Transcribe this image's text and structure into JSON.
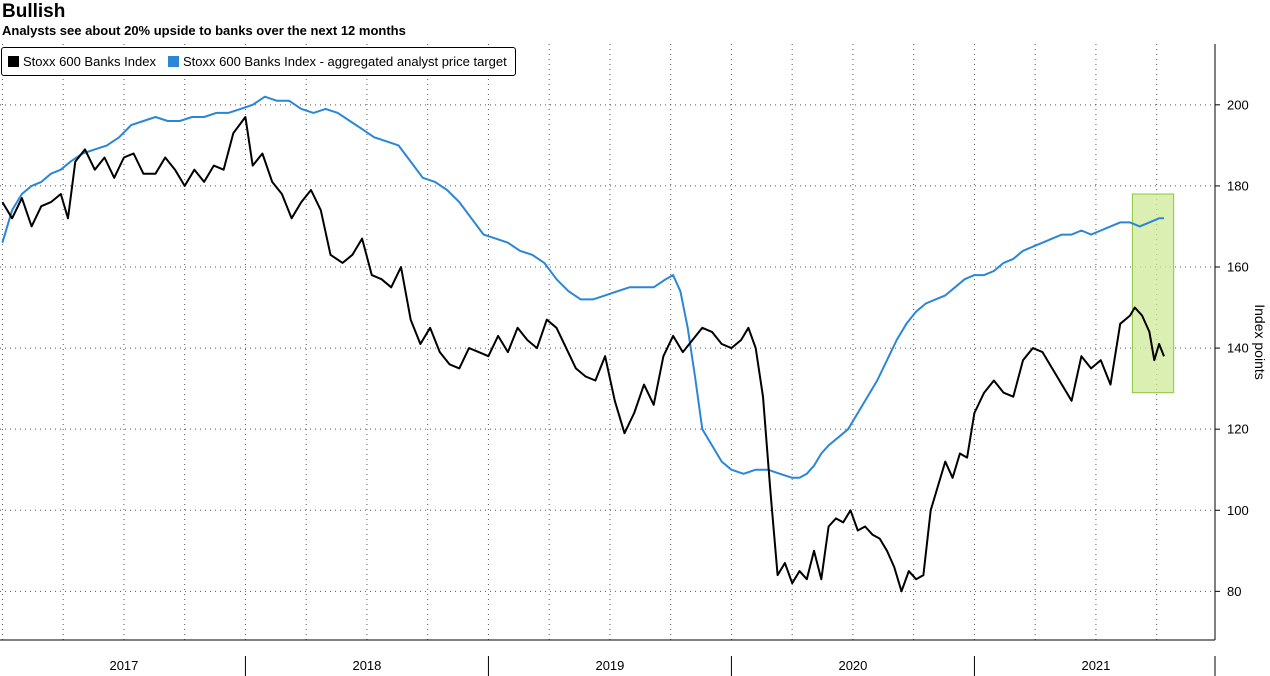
{
  "title": "Bullish",
  "subtitle": "Analysts see about 20% upside to banks over the next 12 months",
  "colors": {
    "index": "#000000",
    "target": "#2b86d6",
    "highlight_fill": "#cfe99a",
    "highlight_stroke": "#8dc63f"
  },
  "chart_data": {
    "type": "line",
    "ylabel": "Index points",
    "ylim": [
      68,
      215
    ],
    "yticks": [
      80,
      100,
      120,
      140,
      160,
      180,
      200
    ],
    "x_range": [
      2016.99,
      2021.99
    ],
    "x_tick_labels": [
      "2017",
      "2018",
      "2019",
      "2020",
      "2021"
    ],
    "legend_position": "top-left",
    "grid": true,
    "highlight_region": {
      "x": [
        2021.65,
        2021.82
      ],
      "y": [
        129,
        178
      ]
    },
    "series": [
      {
        "name": "Stoxx 600 Banks Index",
        "color": "#000000",
        "points": [
          [
            2017.0,
            176
          ],
          [
            2017.04,
            172
          ],
          [
            2017.08,
            177
          ],
          [
            2017.12,
            170
          ],
          [
            2017.16,
            175
          ],
          [
            2017.2,
            176
          ],
          [
            2017.24,
            178
          ],
          [
            2017.27,
            172
          ],
          [
            2017.3,
            186
          ],
          [
            2017.34,
            189
          ],
          [
            2017.38,
            184
          ],
          [
            2017.42,
            187
          ],
          [
            2017.46,
            182
          ],
          [
            2017.5,
            187
          ],
          [
            2017.54,
            188
          ],
          [
            2017.58,
            183
          ],
          [
            2017.63,
            183
          ],
          [
            2017.67,
            187
          ],
          [
            2017.71,
            184
          ],
          [
            2017.75,
            180
          ],
          [
            2017.79,
            184
          ],
          [
            2017.83,
            181
          ],
          [
            2017.87,
            185
          ],
          [
            2017.91,
            184
          ],
          [
            2017.95,
            193
          ],
          [
            2018.0,
            197
          ],
          [
            2018.03,
            185
          ],
          [
            2018.07,
            188
          ],
          [
            2018.11,
            181
          ],
          [
            2018.15,
            178
          ],
          [
            2018.19,
            172
          ],
          [
            2018.23,
            176
          ],
          [
            2018.27,
            179
          ],
          [
            2018.31,
            174
          ],
          [
            2018.35,
            163
          ],
          [
            2018.4,
            161
          ],
          [
            2018.44,
            163
          ],
          [
            2018.48,
            167
          ],
          [
            2018.52,
            158
          ],
          [
            2018.56,
            157
          ],
          [
            2018.6,
            155
          ],
          [
            2018.64,
            160
          ],
          [
            2018.68,
            147
          ],
          [
            2018.72,
            141
          ],
          [
            2018.76,
            145
          ],
          [
            2018.8,
            139
          ],
          [
            2018.84,
            136
          ],
          [
            2018.88,
            135
          ],
          [
            2018.92,
            140
          ],
          [
            2018.96,
            139
          ],
          [
            2019.0,
            138
          ],
          [
            2019.04,
            143
          ],
          [
            2019.08,
            139
          ],
          [
            2019.12,
            145
          ],
          [
            2019.16,
            142
          ],
          [
            2019.2,
            140
          ],
          [
            2019.24,
            147
          ],
          [
            2019.28,
            145
          ],
          [
            2019.32,
            140
          ],
          [
            2019.36,
            135
          ],
          [
            2019.4,
            133
          ],
          [
            2019.44,
            132
          ],
          [
            2019.48,
            138
          ],
          [
            2019.52,
            127
          ],
          [
            2019.56,
            119
          ],
          [
            2019.6,
            124
          ],
          [
            2019.64,
            131
          ],
          [
            2019.68,
            126
          ],
          [
            2019.72,
            138
          ],
          [
            2019.76,
            143
          ],
          [
            2019.8,
            139
          ],
          [
            2019.84,
            142
          ],
          [
            2019.88,
            145
          ],
          [
            2019.92,
            144
          ],
          [
            2019.96,
            141
          ],
          [
            2020.0,
            140
          ],
          [
            2020.04,
            142
          ],
          [
            2020.07,
            145
          ],
          [
            2020.1,
            140
          ],
          [
            2020.13,
            128
          ],
          [
            2020.16,
            105
          ],
          [
            2020.19,
            84
          ],
          [
            2020.22,
            87
          ],
          [
            2020.25,
            82
          ],
          [
            2020.28,
            85
          ],
          [
            2020.31,
            83
          ],
          [
            2020.34,
            90
          ],
          [
            2020.37,
            83
          ],
          [
            2020.4,
            96
          ],
          [
            2020.43,
            98
          ],
          [
            2020.46,
            97
          ],
          [
            2020.49,
            100
          ],
          [
            2020.52,
            95
          ],
          [
            2020.55,
            96
          ],
          [
            2020.58,
            94
          ],
          [
            2020.61,
            93
          ],
          [
            2020.64,
            90
          ],
          [
            2020.67,
            86
          ],
          [
            2020.7,
            80
          ],
          [
            2020.73,
            85
          ],
          [
            2020.76,
            83
          ],
          [
            2020.79,
            84
          ],
          [
            2020.82,
            100
          ],
          [
            2020.85,
            106
          ],
          [
            2020.88,
            112
          ],
          [
            2020.91,
            108
          ],
          [
            2020.94,
            114
          ],
          [
            2020.97,
            113
          ],
          [
            2021.0,
            124
          ],
          [
            2021.04,
            129
          ],
          [
            2021.08,
            132
          ],
          [
            2021.12,
            129
          ],
          [
            2021.16,
            128
          ],
          [
            2021.2,
            137
          ],
          [
            2021.24,
            140
          ],
          [
            2021.28,
            139
          ],
          [
            2021.32,
            135
          ],
          [
            2021.36,
            131
          ],
          [
            2021.4,
            127
          ],
          [
            2021.44,
            138
          ],
          [
            2021.48,
            135
          ],
          [
            2021.52,
            137
          ],
          [
            2021.56,
            131
          ],
          [
            2021.6,
            146
          ],
          [
            2021.64,
            148
          ],
          [
            2021.66,
            150
          ],
          [
            2021.69,
            148
          ],
          [
            2021.72,
            144
          ],
          [
            2021.74,
            137
          ],
          [
            2021.76,
            141
          ],
          [
            2021.78,
            138
          ]
        ]
      },
      {
        "name": "Stoxx 600 Banks Index - aggregated analyst price target",
        "color": "#2b86d6",
        "points": [
          [
            2017.0,
            166
          ],
          [
            2017.04,
            174
          ],
          [
            2017.08,
            178
          ],
          [
            2017.12,
            180
          ],
          [
            2017.16,
            181
          ],
          [
            2017.2,
            183
          ],
          [
            2017.24,
            184
          ],
          [
            2017.28,
            186
          ],
          [
            2017.33,
            188
          ],
          [
            2017.38,
            189
          ],
          [
            2017.43,
            190
          ],
          [
            2017.48,
            192
          ],
          [
            2017.53,
            195
          ],
          [
            2017.58,
            196
          ],
          [
            2017.63,
            197
          ],
          [
            2017.68,
            196
          ],
          [
            2017.73,
            196
          ],
          [
            2017.78,
            197
          ],
          [
            2017.83,
            197
          ],
          [
            2017.88,
            198
          ],
          [
            2017.93,
            198
          ],
          [
            2017.98,
            199
          ],
          [
            2018.03,
            200
          ],
          [
            2018.08,
            202
          ],
          [
            2018.13,
            201
          ],
          [
            2018.18,
            201
          ],
          [
            2018.23,
            199
          ],
          [
            2018.28,
            198
          ],
          [
            2018.33,
            199
          ],
          [
            2018.38,
            198
          ],
          [
            2018.43,
            196
          ],
          [
            2018.48,
            194
          ],
          [
            2018.53,
            192
          ],
          [
            2018.58,
            191
          ],
          [
            2018.63,
            190
          ],
          [
            2018.68,
            186
          ],
          [
            2018.73,
            182
          ],
          [
            2018.78,
            181
          ],
          [
            2018.83,
            179
          ],
          [
            2018.88,
            176
          ],
          [
            2018.93,
            172
          ],
          [
            2018.98,
            168
          ],
          [
            2019.03,
            167
          ],
          [
            2019.08,
            166
          ],
          [
            2019.13,
            164
          ],
          [
            2019.18,
            163
          ],
          [
            2019.23,
            161
          ],
          [
            2019.28,
            157
          ],
          [
            2019.33,
            154
          ],
          [
            2019.38,
            152
          ],
          [
            2019.43,
            152
          ],
          [
            2019.48,
            153
          ],
          [
            2019.53,
            154
          ],
          [
            2019.58,
            155
          ],
          [
            2019.63,
            155
          ],
          [
            2019.68,
            155
          ],
          [
            2019.73,
            157
          ],
          [
            2019.76,
            158
          ],
          [
            2019.79,
            154
          ],
          [
            2019.82,
            145
          ],
          [
            2019.85,
            133
          ],
          [
            2019.88,
            120
          ],
          [
            2019.92,
            116
          ],
          [
            2019.96,
            112
          ],
          [
            2020.0,
            110
          ],
          [
            2020.05,
            109
          ],
          [
            2020.1,
            110
          ],
          [
            2020.15,
            110
          ],
          [
            2020.2,
            109
          ],
          [
            2020.25,
            108
          ],
          [
            2020.28,
            108
          ],
          [
            2020.31,
            109
          ],
          [
            2020.34,
            111
          ],
          [
            2020.37,
            114
          ],
          [
            2020.4,
            116
          ],
          [
            2020.44,
            118
          ],
          [
            2020.48,
            120
          ],
          [
            2020.52,
            124
          ],
          [
            2020.56,
            128
          ],
          [
            2020.6,
            132
          ],
          [
            2020.64,
            137
          ],
          [
            2020.68,
            142
          ],
          [
            2020.72,
            146
          ],
          [
            2020.76,
            149
          ],
          [
            2020.8,
            151
          ],
          [
            2020.84,
            152
          ],
          [
            2020.88,
            153
          ],
          [
            2020.92,
            155
          ],
          [
            2020.96,
            157
          ],
          [
            2021.0,
            158
          ],
          [
            2021.04,
            158
          ],
          [
            2021.08,
            159
          ],
          [
            2021.12,
            161
          ],
          [
            2021.16,
            162
          ],
          [
            2021.2,
            164
          ],
          [
            2021.24,
            165
          ],
          [
            2021.28,
            166
          ],
          [
            2021.32,
            167
          ],
          [
            2021.36,
            168
          ],
          [
            2021.4,
            168
          ],
          [
            2021.44,
            169
          ],
          [
            2021.48,
            168
          ],
          [
            2021.52,
            169
          ],
          [
            2021.56,
            170
          ],
          [
            2021.6,
            171
          ],
          [
            2021.64,
            171
          ],
          [
            2021.68,
            170
          ],
          [
            2021.72,
            171
          ],
          [
            2021.76,
            172
          ],
          [
            2021.78,
            172
          ]
        ]
      }
    ]
  }
}
